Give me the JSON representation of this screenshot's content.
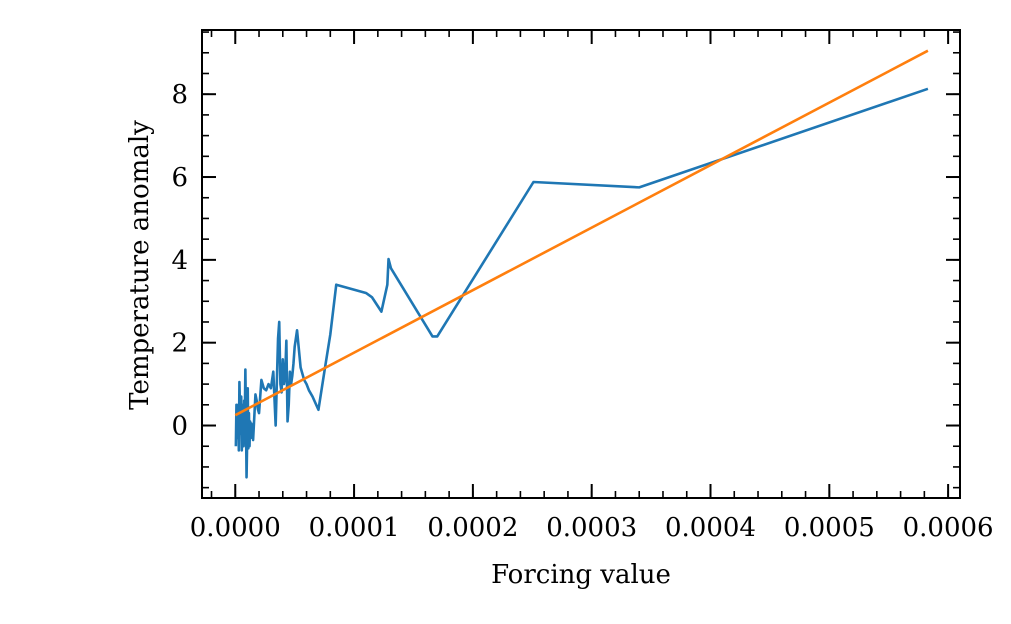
{
  "chart_data": {
    "type": "line",
    "title": "",
    "xlabel": "Forcing value",
    "ylabel": "Temperature anomaly",
    "xlim": [
      -2.8e-05,
      0.00061
    ],
    "ylim": [
      -1.75,
      9.55
    ],
    "xticks": [
      0.0,
      0.0001,
      0.0002,
      0.0003,
      0.0004,
      0.0005,
      0.0006
    ],
    "xtick_labels": [
      "0.0000",
      "0.0001",
      "0.0002",
      "0.0003",
      "0.0004",
      "0.0005",
      "0.0006"
    ],
    "xminor_step": 2e-05,
    "yticks": [
      0,
      2,
      4,
      6,
      8
    ],
    "ytick_labels": [
      "0",
      "2",
      "4",
      "6",
      "8"
    ],
    "yminor_step": 0.5,
    "grid": false,
    "series": [
      {
        "color": "#1f77b4",
        "x": [
          5e-07,
          1e-06,
          1.5e-06,
          2e-06,
          2.5e-06,
          3e-06,
          3.5e-06,
          4e-06,
          4.5e-06,
          5e-06,
          5.5e-06,
          6e-06,
          6.5e-06,
          7e-06,
          7.5e-06,
          8e-06,
          8.5e-06,
          9e-06,
          9.5e-06,
          1e-05,
          1.05e-05,
          1.1e-05,
          1.15e-05,
          1.2e-05,
          1.25e-05,
          1.3e-05,
          1.35e-05,
          1.4e-05,
          1.45e-05,
          1.5e-05,
          1.6e-05,
          1.7e-05,
          1.8e-05,
          1.9e-05,
          2e-05,
          2.2e-05,
          2.4e-05,
          2.6e-05,
          2.8e-05,
          3e-05,
          3.2e-05,
          3.4e-05,
          3.6e-05,
          3.7e-05,
          3.8e-05,
          3.9e-05,
          4e-05,
          4.1e-05,
          4.2e-05,
          4.3e-05,
          4.4e-05,
          4.5e-05,
          4.6e-05,
          4.7e-05,
          4.8e-05,
          4.9e-05,
          5e-05,
          5.2e-05,
          5.5e-05,
          5.8e-05,
          6e-05,
          6.2e-05,
          6.5e-05,
          7e-05,
          7.5e-05,
          8e-05,
          8.5e-05,
          0.00011,
          0.000115,
          0.000123,
          0.000128,
          0.000129,
          0.000131,
          0.000166,
          0.00017,
          0.000251,
          0.00034,
          0.000583
        ],
        "y": [
          -0.5,
          0.5,
          -0.3,
          0.2,
          0.5,
          -0.6,
          1.05,
          0.4,
          -0.2,
          0.7,
          -0.6,
          0.0,
          0.5,
          -0.5,
          0.6,
          0.1,
          1.35,
          0.2,
          -1.25,
          -0.4,
          0.9,
          -0.55,
          0.3,
          -0.5,
          0.1,
          -0.3,
          0.05,
          -0.1,
          0.0,
          -0.35,
          0.2,
          0.75,
          0.6,
          0.4,
          0.3,
          1.1,
          0.9,
          0.85,
          1.0,
          0.9,
          1.3,
          0.0,
          2.1,
          2.5,
          1.0,
          0.8,
          1.6,
          1.0,
          1.2,
          2.05,
          0.1,
          0.5,
          1.3,
          1.0,
          1.2,
          1.5,
          1.9,
          2.3,
          1.4,
          1.1,
          1.0,
          0.85,
          0.7,
          0.38,
          1.3,
          2.2,
          3.4,
          3.2,
          3.1,
          2.75,
          3.4,
          4.02,
          3.8,
          2.15,
          2.15,
          5.88,
          5.75,
          8.13
        ]
      },
      {
        "color": "#ff7f0e",
        "x": [
          0.0,
          0.000583
        ],
        "y": [
          0.25,
          9.05
        ]
      }
    ]
  }
}
